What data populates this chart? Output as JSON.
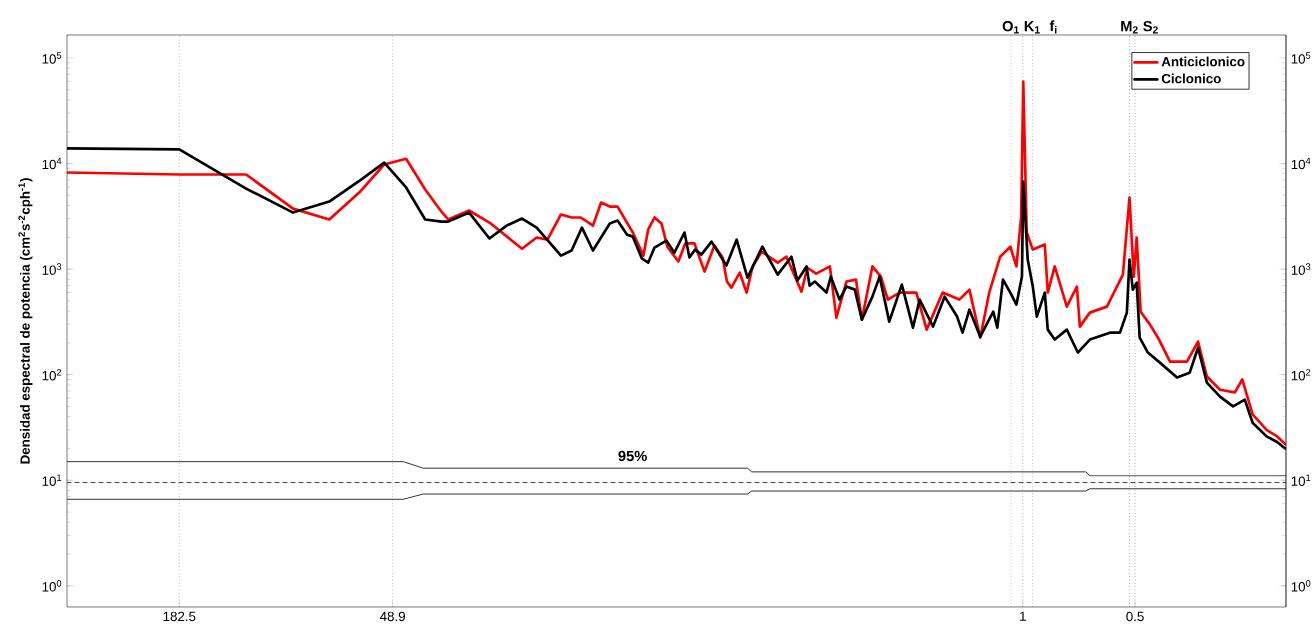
{
  "chart_data": {
    "type": "line",
    "ylabel": "Densidad espectral de potencia (cm$^{2}$s$^{-2}$cph$^{-1}$)",
    "log": "xy",
    "xlim": [
      365,
      0.197
    ],
    "xticks": [
      182.5,
      48.9,
      1,
      0.5
    ],
    "ylim": [
      0.63,
      165000
    ],
    "yticks": [
      {
        "value": 1,
        "label": "10$^{0}$"
      },
      {
        "value": 10,
        "label": "10$^{1}$"
      },
      {
        "value": 100,
        "label": "10$^{2}$"
      },
      {
        "value": 1000,
        "label": "10$^{3}$"
      },
      {
        "value": 10000,
        "label": "10$^{4}$"
      },
      {
        "value": 100000,
        "label": "10$^{5}$"
      }
    ],
    "grid": "x",
    "legend": "top right",
    "series": [
      {
        "name": "Anticiclonico",
        "color": "#ff0000",
        "x": [
          365,
          182.5,
          120.8,
          90.4,
          72.3,
          60.1,
          51.5,
          45.0,
          40.0,
          36.2,
          34.7,
          30.5,
          26.9,
          22.0,
          20.1,
          18.8,
          17.3,
          16.2,
          15.3,
          14.2,
          13.5,
          12.8,
          12.2,
          11.1,
          10.4,
          10.1,
          9.71,
          9.3,
          8.97,
          8.38,
          8.03,
          7.59,
          7.13,
          6.71,
          6.38,
          6.21,
          6.04,
          5.74,
          5.5,
          5.3,
          5.01,
          4.54,
          4.3,
          3.92,
          3.78,
          3.58,
          3.29,
          3.16,
          2.97,
          2.8,
          2.7,
          2.53,
          2.4,
          2.3,
          2.14,
          1.93,
          1.81,
          1.64,
          1.48,
          1.39,
          1.3,
          1.23,
          1.15,
          1.08,
          1.04,
          1.01,
          0.997,
          0.976,
          0.94,
          0.873,
          0.857,
          0.821,
          0.762,
          0.716,
          0.703,
          0.661,
          0.595,
          0.539,
          0.5175,
          0.504,
          0.495,
          0.483,
          0.456,
          0.434,
          0.403,
          0.363,
          0.339,
          0.321,
          0.296,
          0.27,
          0.258,
          0.242,
          0.222,
          0.208,
          0.198
        ],
        "values": [
          8220,
          7870,
          7870,
          3740,
          2950,
          5310,
          9790,
          11100,
          5670,
          3510,
          2950,
          3590,
          2760,
          1560,
          1990,
          1900,
          3290,
          3080,
          3080,
          2580,
          4270,
          3910,
          3910,
          2220,
          1340,
          2370,
          3080,
          2700,
          1630,
          1180,
          1750,
          1750,
          947,
          1670,
          1290,
          762,
          668,
          926,
          599,
          1060,
          1460,
          1150,
          1310,
          612,
          1030,
          906,
          1060,
          347,
          762,
          795,
          332,
          1060,
          849,
          514,
          599,
          599,
          267,
          599,
          514,
          639,
          224,
          599,
          1310,
          1630,
          1060,
          3150,
          59800,
          2220,
          1530,
          1710,
          599,
          1060,
          441,
          683,
          285,
          387,
          441,
          887,
          4760,
          849,
          1990,
          395,
          298,
          224,
          133,
          133,
          206,
          96,
          72,
          68,
          90,
          42,
          30,
          26,
          22
        ]
      },
      {
        "name": "Ciclonico",
        "color": "#000000",
        "x": [
          365,
          182.5,
          120.8,
          90.4,
          72.3,
          59.4,
          51.5,
          45.0,
          40.0,
          36.2,
          34.7,
          30.5,
          26.9,
          24.2,
          22.0,
          20.1,
          17.3,
          16.2,
          15.2,
          14.2,
          12.8,
          12.2,
          11.5,
          11.1,
          10.5,
          10.1,
          9.71,
          9.02,
          8.59,
          8.07,
          7.83,
          7.56,
          7.27,
          6.83,
          6.23,
          5.85,
          5.47,
          4.99,
          4.54,
          4.17,
          4.02,
          3.8,
          3.73,
          3.61,
          3.36,
          3.27,
          3.1,
          2.97,
          2.82,
          2.7,
          2.53,
          2.42,
          2.28,
          2.11,
          1.97,
          1.89,
          1.74,
          1.62,
          1.5,
          1.45,
          1.39,
          1.3,
          1.2,
          1.17,
          1.13,
          1.08,
          1.04,
          1.005,
          0.997,
          0.97,
          0.94,
          0.917,
          0.873,
          0.857,
          0.821,
          0.762,
          0.712,
          0.661,
          0.584,
          0.549,
          0.526,
          0.5175,
          0.507,
          0.495,
          0.486,
          0.462,
          0.429,
          0.386,
          0.357,
          0.339,
          0.321,
          0.296,
          0.273,
          0.254,
          0.242,
          0.222,
          0.208,
          0.198
        ],
        "values": [
          13900,
          13600,
          5790,
          3430,
          4360,
          7050,
          10200,
          5930,
          2950,
          2820,
          2820,
          3430,
          1950,
          2580,
          3010,
          2470,
          1340,
          1500,
          2470,
          1500,
          2700,
          2880,
          2120,
          2030,
          1260,
          1150,
          1600,
          1860,
          1430,
          2220,
          1290,
          1530,
          1370,
          1820,
          1080,
          1900,
          830,
          1630,
          887,
          1310,
          778,
          1060,
          698,
          762,
          599,
          849,
          514,
          683,
          639,
          332,
          548,
          849,
          318,
          713,
          279,
          514,
          285,
          548,
          355,
          250,
          413,
          229,
          395,
          279,
          795,
          599,
          461,
          849,
          6750,
          1230,
          683,
          355,
          599,
          267,
          215,
          267,
          162,
          215,
          250,
          250,
          387,
          1230,
          639,
          745,
          224,
          162,
          130,
          94,
          104,
          180,
          84,
          62,
          50,
          58,
          35,
          26,
          23,
          20
        ]
      },
      {
        "color": "#000000",
        "x": [
          365,
          45.8,
          40.5,
          5.47,
          5.33,
          0.678,
          0.661,
          0.197
        ],
        "values": [
          15,
          15,
          13,
          13,
          12,
          12,
          11,
          11
        ]
      },
      {
        "color": "#000000",
        "line_style": "dashed",
        "x": [
          365,
          0.197
        ],
        "values": [
          9.5,
          9.5
        ]
      },
      {
        "color": "#000000",
        "x": [
          365,
          45.8,
          40.5,
          5.47,
          5.33,
          0.678,
          0.661,
          0.197
        ],
        "values": [
          6.6,
          6.6,
          7.4,
          7.4,
          7.9,
          7.9,
          8.3,
          8.3
        ]
      }
    ],
    "ref_lines": [
      {
        "axis": "x",
        "value": 1.076,
        "label": "O$_{1}$",
        "line_style": "dotted"
      },
      {
        "axis": "x",
        "value": 1,
        "label": "K$_{1}$",
        "line_style": "dotted"
      },
      {
        "axis": "x",
        "value": 0.94,
        "label": "f$_{i}$",
        "line_style": "dotted"
      },
      {
        "axis": "x",
        "value": 0.5175,
        "label": "M$_{2}$",
        "line_style": "dotted"
      },
      {
        "axis": "x",
        "value": 0.5,
        "label": "S$_{2}$",
        "line_style": "dotted"
      }
    ],
    "annotations": [
      "95%"
    ]
  }
}
